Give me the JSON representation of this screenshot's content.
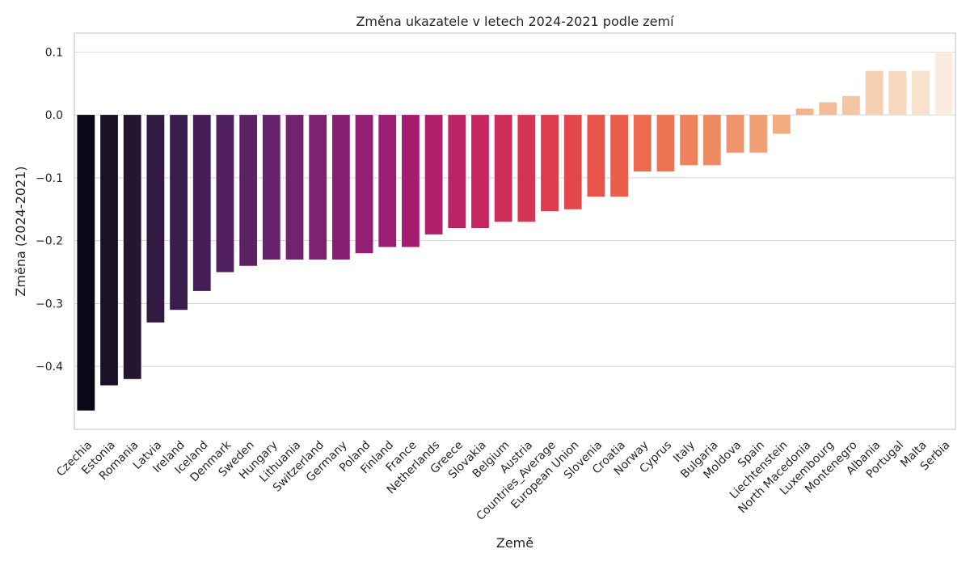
{
  "chart_data": {
    "type": "bar",
    "title": "Změna ukazatele v letech 2024-2021 podle zemí",
    "xlabel": "Země",
    "ylabel": "Změna (2024-2021)",
    "ylim": [
      -0.5,
      0.13
    ],
    "yticks": [
      -0.4,
      -0.3,
      -0.2,
      -0.1,
      0.0,
      0.1
    ],
    "ytick_labels": [
      "−0.4",
      "−0.3",
      "−0.2",
      "−0.1",
      "0.0",
      "0.1"
    ],
    "grid": true,
    "categories": [
      "Czechia",
      "Estonia",
      "Romania",
      "Latvia",
      "Ireland",
      "Iceland",
      "Denmark",
      "Sweden",
      "Hungary",
      "Lithuania",
      "Switzerland",
      "Germany",
      "Poland",
      "Finland",
      "France",
      "Netherlands",
      "Greece",
      "Slovakia",
      "Belgium",
      "Austria",
      "Countries_Average",
      "European Union",
      "Slovenia",
      "Croatia",
      "Norway",
      "Cyprus",
      "Italy",
      "Bulgaria",
      "Moldova",
      "Spain",
      "Liechtenstein",
      "North Macedonia",
      "Luxembourg",
      "Montenegro",
      "Albania",
      "Portugal",
      "Malta",
      "Serbia"
    ],
    "values": [
      -0.47,
      -0.43,
      -0.42,
      -0.33,
      -0.31,
      -0.28,
      -0.25,
      -0.24,
      -0.23,
      -0.23,
      -0.23,
      -0.23,
      -0.22,
      -0.21,
      -0.21,
      -0.19,
      -0.18,
      -0.18,
      -0.17,
      -0.17,
      -0.153,
      -0.15,
      -0.13,
      -0.13,
      -0.09,
      -0.09,
      -0.08,
      -0.08,
      -0.06,
      -0.06,
      -0.03,
      0.01,
      0.02,
      0.03,
      0.07,
      0.07,
      0.07,
      0.1
    ],
    "colors": [
      "#0b0716",
      "#1b1126",
      "#261433",
      "#311a3f",
      "#3b1d4b",
      "#461d58",
      "#51205f",
      "#5c2266",
      "#67236b",
      "#71236e",
      "#7c2270",
      "#871f71",
      "#911f72",
      "#9c1e72",
      "#a61d70",
      "#b21f6c",
      "#bc2265",
      "#c5275e",
      "#ce2d58",
      "#d63453",
      "#dd3c4e",
      "#e3464b",
      "#e8534a",
      "#eb5e4c",
      "#ed6a4f",
      "#ee7554",
      "#ef805c",
      "#ef8b63",
      "#f0956b",
      "#f1a075",
      "#f2aa7f",
      "#f3b48b",
      "#f4bd97",
      "#f5c6a4",
      "#f6cfb1",
      "#f7d8bf",
      "#f8e1cd",
      "#fbecdf"
    ]
  }
}
